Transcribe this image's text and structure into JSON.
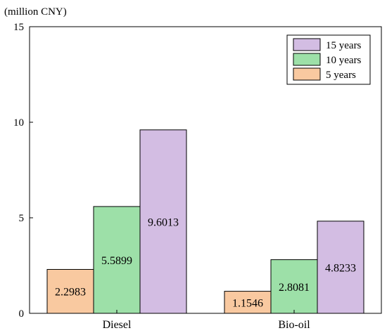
{
  "chart_data": {
    "type": "bar",
    "unit_label": "(million CNY)",
    "categories": [
      "Diesel",
      "Bio-oil"
    ],
    "series": [
      {
        "name": "5 years",
        "values": [
          2.2983,
          1.1546
        ],
        "color": "#f9c9a0"
      },
      {
        "name": "10 years",
        "values": [
          5.5899,
          2.8081
        ],
        "color": "#9de0a8"
      },
      {
        "name": "15 years",
        "values": [
          9.6013,
          4.8233
        ],
        "color": "#d3bde3"
      }
    ],
    "data_labels": [
      [
        "2.2983",
        "5.5899",
        "9.6013"
      ],
      [
        "1.1546",
        "2.8081",
        "4.8233"
      ]
    ],
    "y_ticks": [
      "0",
      "5",
      "10",
      "15"
    ],
    "ylim": [
      0,
      15
    ],
    "legend_position": "top-right",
    "legend_order": [
      "15 years",
      "10 years",
      "5 years"
    ],
    "grid": false
  }
}
